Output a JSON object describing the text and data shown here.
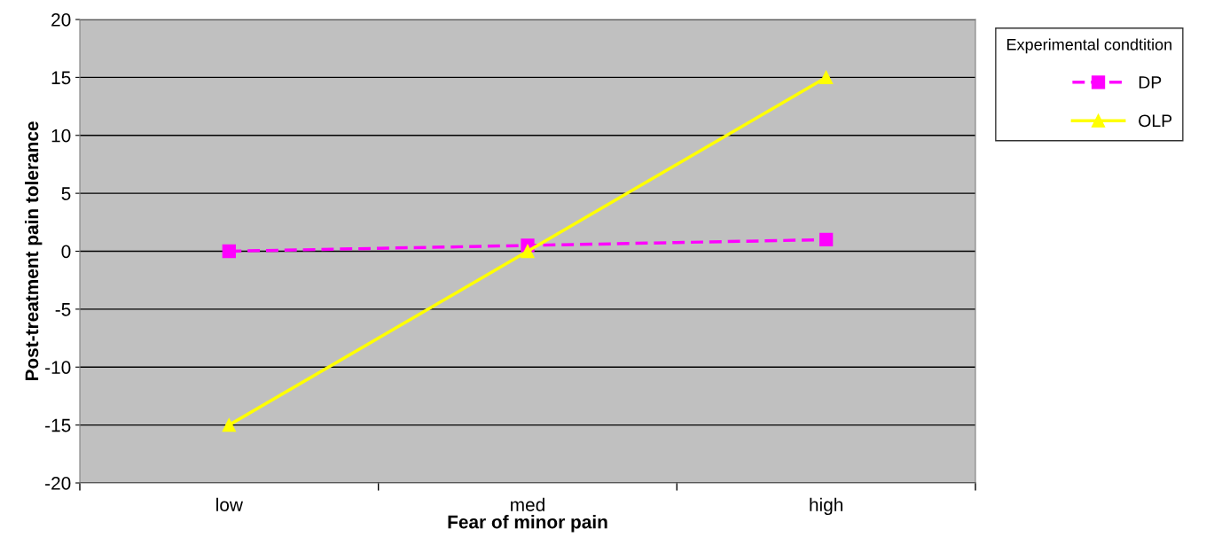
{
  "chart_data": {
    "type": "line",
    "xlabel": "Fear of minor pain",
    "ylabel": "Post-treatment pain tolerance",
    "legend_title": "Experimental condtition",
    "categories": [
      "low",
      "med",
      "high"
    ],
    "series": [
      {
        "name": "DP",
        "color": "#ff00ff",
        "values": [
          0,
          0.5,
          1
        ],
        "marker": "square",
        "line_style": "dashed"
      },
      {
        "name": "OLP",
        "color": "#ffff00",
        "values": [
          -15,
          0,
          15
        ],
        "marker": "triangle",
        "line_style": "solid"
      }
    ],
    "ylim": [
      -20,
      20
    ],
    "yticks": [
      -20,
      -15,
      -10,
      -5,
      0,
      5,
      10,
      15,
      20
    ],
    "grid": "y",
    "legend": "top right"
  }
}
